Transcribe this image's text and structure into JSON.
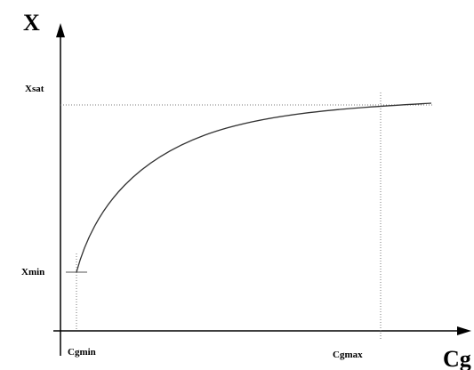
{
  "axes": {
    "y_label": "X",
    "x_label": "Cg"
  },
  "labels": {
    "xsat": "Xsat",
    "xmin": "Xmin",
    "cgmin": "Cgmin",
    "cgmax": "Cgmax"
  }
}
